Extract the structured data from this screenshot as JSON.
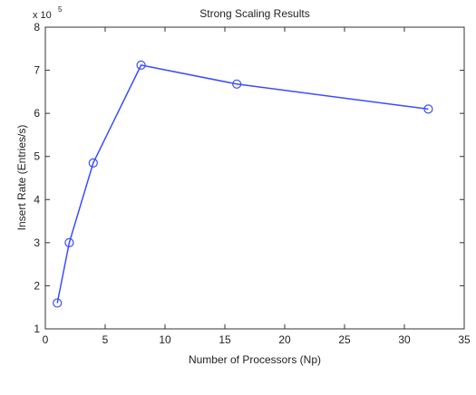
{
  "chart_data": {
    "type": "line",
    "title": "Strong Scaling Results",
    "xlabel": "Number of Processors (Np)",
    "ylabel": "Insert Rate (Entries/s)",
    "y_multiplier_label": "x 10",
    "y_multiplier_exponent": "5",
    "xlim": [
      0,
      35
    ],
    "ylim": [
      1,
      8
    ],
    "xticks": [
      0,
      5,
      10,
      15,
      20,
      25,
      30,
      35
    ],
    "yticks": [
      1,
      2,
      3,
      4,
      5,
      6,
      7,
      8
    ],
    "grid": false,
    "legend": "none",
    "marker": "circle",
    "color": "#3b4cff",
    "series": [
      {
        "x": [
          1,
          2,
          4,
          8,
          16,
          32
        ],
        "y": [
          1.6,
          3.0,
          4.85,
          7.12,
          6.68,
          6.1
        ]
      }
    ]
  }
}
